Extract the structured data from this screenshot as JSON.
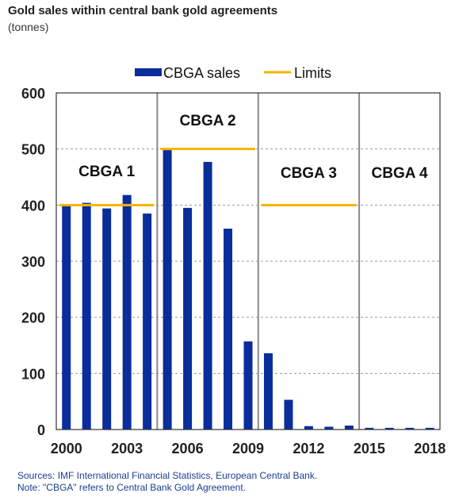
{
  "title": "Gold sales within central bank gold agreements",
  "subtitle": "(tonnes)",
  "colors": {
    "bars": "#0a2d9c",
    "limits": "#f5b400",
    "grid": "#9a9a9a",
    "axis": "#222222",
    "note": "#1a3d8f"
  },
  "chart_data": {
    "type": "bar",
    "ylim": [
      0,
      600
    ],
    "yticks": [
      0,
      100,
      200,
      300,
      400,
      500,
      600
    ],
    "x": [
      2000,
      2001,
      2002,
      2003,
      2004,
      2005,
      2006,
      2007,
      2008,
      2009,
      2010,
      2011,
      2012,
      2013,
      2014,
      2015,
      2016,
      2017,
      2018
    ],
    "xticks": [
      "2000",
      "2003",
      "2006",
      "2009",
      "2012",
      "2015",
      "2018"
    ],
    "series": [
      {
        "name": "CBGA sales",
        "values": [
          400,
          404,
          394,
          418,
          385,
          498,
          395,
          477,
          358,
          157,
          136,
          53,
          6,
          5,
          7,
          3,
          3,
          3,
          3
        ]
      }
    ],
    "limits": {
      "name": "Limits",
      "segments": [
        {
          "from": 2000,
          "to": 2004,
          "value": 400
        },
        {
          "from": 2005,
          "to": 2009,
          "value": 500
        },
        {
          "from": 2010,
          "to": 2014,
          "value": 400
        }
      ]
    },
    "periods": [
      {
        "label": "CBGA 1",
        "from": 2000,
        "to": 2004
      },
      {
        "label": "CBGA 2",
        "from": 2005,
        "to": 2009
      },
      {
        "label": "CBGA 3",
        "from": 2010,
        "to": 2014
      },
      {
        "label": "CBGA 4",
        "from": 2015,
        "to": 2019
      }
    ],
    "grid": true,
    "legend_position": "top"
  },
  "notes": [
    "Sources: IMF International Financial Statistics, European Central Bank.",
    "Note: \"CBGA\" refers to Central Bank Gold Agreement."
  ]
}
